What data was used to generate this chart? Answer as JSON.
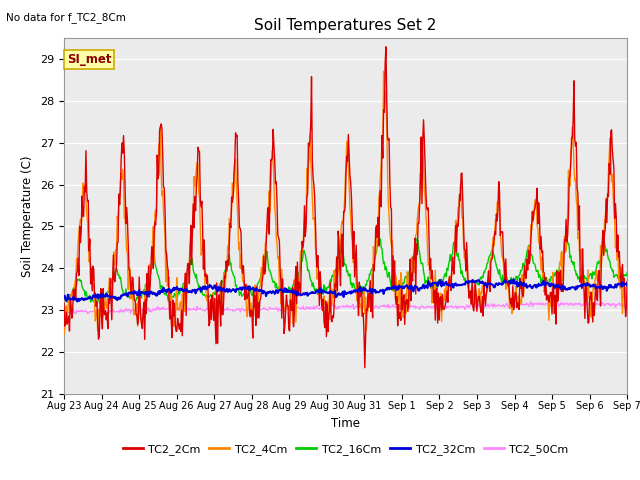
{
  "title": "Soil Temperatures Set 2",
  "subtitle": "No data for f_TC2_8Cm",
  "xlabel": "Time",
  "ylabel": "Soil Temperature (C)",
  "ylim": [
    21.0,
    29.5
  ],
  "yticks": [
    21.0,
    22.0,
    23.0,
    24.0,
    25.0,
    26.0,
    27.0,
    28.0,
    29.0
  ],
  "fig_bg_color": "#ffffff",
  "plot_bg_color": "#ebebeb",
  "legend_label": "SI_met",
  "series_colors": {
    "TC2_2Cm": "#dd0000",
    "TC2_4Cm": "#ff8800",
    "TC2_16Cm": "#00cc00",
    "TC2_32Cm": "#0000dd",
    "TC2_50Cm": "#ff88ff"
  },
  "n_days": 15,
  "pts_per_day": 48,
  "xtick_labels": [
    "Aug 23",
    "Aug 24",
    "Aug 25",
    "Aug 26",
    "Aug 27",
    "Aug 28",
    "Aug 29",
    "Aug 30",
    "Aug 31",
    "Sep 1",
    "Sep 2",
    "Sep 3",
    "Sep 4",
    "Sep 5",
    "Sep 6",
    "Sep 7"
  ],
  "seed": 7
}
